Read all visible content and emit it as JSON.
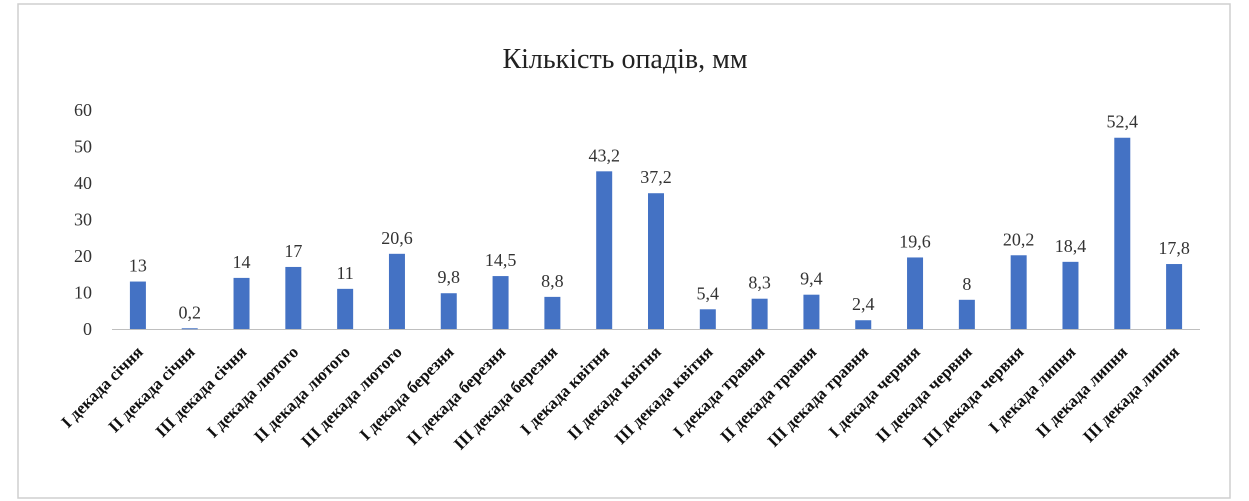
{
  "chart_data": {
    "type": "bar",
    "title": "Кількість опадів, мм",
    "xlabel": "",
    "ylabel": "",
    "ylim": [
      0,
      60
    ],
    "yticks": [
      0,
      10,
      20,
      30,
      40,
      50,
      60
    ],
    "grid": false,
    "legend": "none",
    "bar_color": "#4472C4",
    "categories": [
      "I декада січня",
      "II декада січня",
      "III декада січня",
      "I декада лютого",
      "II декада лютого",
      "III декада лютого",
      "I декада березня",
      "II декада березня",
      "III декада березня",
      "I декада квітня",
      "II декада квітня",
      "III декада квітня",
      "I декада травня",
      "II декада травня",
      "III декада травня",
      "I декада червня",
      "II декада червня",
      "III декада червня",
      "I декада липня",
      "II декада липня",
      "III декада липня"
    ],
    "values": [
      13,
      0.2,
      14,
      17,
      11,
      20.6,
      9.8,
      14.5,
      8.8,
      43.2,
      37.2,
      5.4,
      8.3,
      9.4,
      2.4,
      19.6,
      8,
      20.2,
      18.4,
      52.4,
      17.8
    ],
    "data_labels": [
      "13",
      "0,2",
      "14",
      "17",
      "11",
      "20,6",
      "9,8",
      "14,5",
      "8,8",
      "43,2",
      "37,2",
      "5,4",
      "8,3",
      "9,4",
      "2,4",
      "19,6",
      "8",
      "20,2",
      "18,4",
      "52,4",
      "17,8"
    ]
  }
}
